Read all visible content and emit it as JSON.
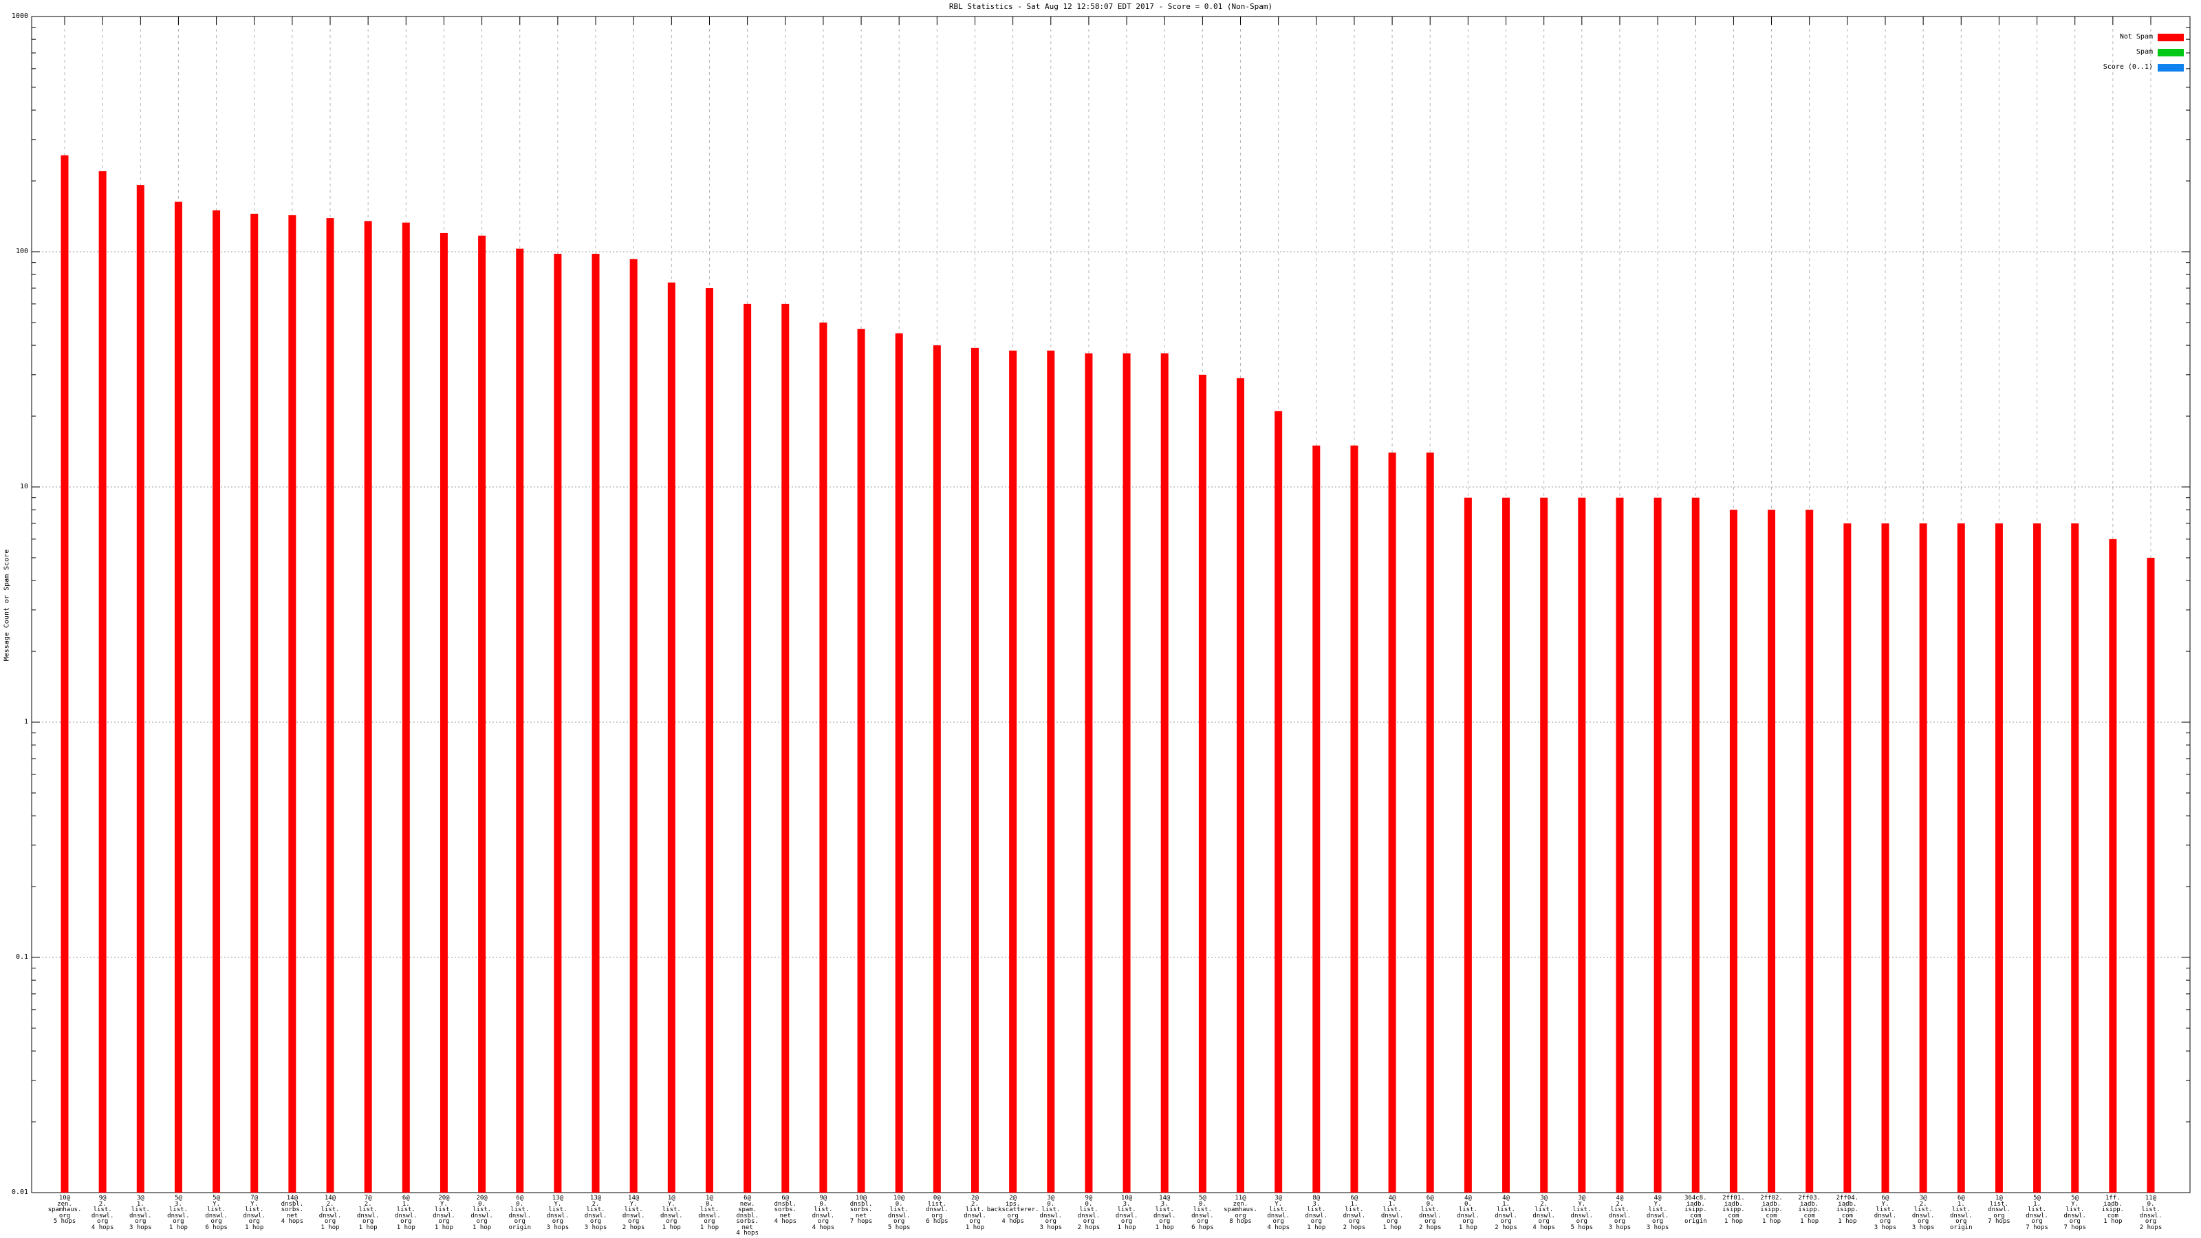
{
  "chart_data": {
    "type": "bar",
    "title": "RBL Statistics - Sat Aug 12 12:58:07 EDT 2017 - Score = 0.01 (Non-Spam)",
    "ylabel": "Message Count or Spam Score",
    "xlabel": "",
    "yscale": "log",
    "ylim": [
      0.01,
      1000
    ],
    "ytick_values": [
      1000,
      100,
      10,
      1,
      0.1,
      0.01
    ],
    "ytick_labels": [
      "1000",
      "100",
      "10",
      "1",
      "0.1",
      "0.01"
    ],
    "grid": true,
    "legend_position": "top-right-inside",
    "legend": [
      {
        "label": "Not Spam",
        "color": "#ff0000"
      },
      {
        "label": "Spam",
        "color": "#00c814"
      },
      {
        "label": "Score (0..1)",
        "color": "#1082f0"
      }
    ],
    "series_shown_in_bars": "Not Spam",
    "bar_color": "#ff0000",
    "bars": [
      {
        "label_lines": [
          "10@",
          "zen.",
          "spamhaus.",
          "org",
          "5 hops"
        ],
        "value": 257
      },
      {
        "label_lines": [
          "9@",
          "2.",
          "list.",
          "dnswl.",
          "org",
          "4 hops"
        ],
        "value": 220
      },
      {
        "label_lines": [
          "3@",
          "1.",
          "list.",
          "dnswl.",
          "org",
          "3 hops"
        ],
        "value": 192
      },
      {
        "label_lines": [
          "5@",
          "3.",
          "list.",
          "dnswl.",
          "org",
          "1 hop"
        ],
        "value": 163
      },
      {
        "label_lines": [
          "5@",
          "Y.",
          "list.",
          "dnswl.",
          "org",
          "6 hops"
        ],
        "value": 150
      },
      {
        "label_lines": [
          "7@",
          "Y.",
          "list.",
          "dnswl.",
          "org",
          "1 hop"
        ],
        "value": 145
      },
      {
        "label_lines": [
          "14@",
          "dnsbl.",
          "sorbs.",
          "net",
          "4 hops"
        ],
        "value": 143
      },
      {
        "label_lines": [
          "14@",
          "2.",
          "list.",
          "dnswl.",
          "org",
          "1 hop"
        ],
        "value": 139
      },
      {
        "label_lines": [
          "7@",
          "2.",
          "list.",
          "dnswl.",
          "org",
          "1 hop"
        ],
        "value": 135
      },
      {
        "label_lines": [
          "6@",
          "1.",
          "list.",
          "dnswl.",
          "org",
          "1 hop"
        ],
        "value": 133
      },
      {
        "label_lines": [
          "20@",
          "Y.",
          "list.",
          "dnswl.",
          "org",
          "1 hop"
        ],
        "value": 120
      },
      {
        "label_lines": [
          "20@",
          "0.",
          "list.",
          "dnswl.",
          "org",
          "1 hop"
        ],
        "value": 117
      },
      {
        "label_lines": [
          "6@",
          "0.",
          "list.",
          "dnswl.",
          "org",
          "origin"
        ],
        "value": 103
      },
      {
        "label_lines": [
          "13@",
          "Y.",
          "list.",
          "dnswl.",
          "org",
          "3 hops"
        ],
        "value": 98
      },
      {
        "label_lines": [
          "13@",
          "2.",
          "list.",
          "dnswl.",
          "org",
          "3 hops"
        ],
        "value": 98
      },
      {
        "label_lines": [
          "14@",
          "Y.",
          "list.",
          "dnswl.",
          "org",
          "2 hops"
        ],
        "value": 93
      },
      {
        "label_lines": [
          "1@",
          "Y.",
          "list.",
          "dnswl.",
          "org",
          "1 hop"
        ],
        "value": 74
      },
      {
        "label_lines": [
          "1@",
          "0.",
          "list.",
          "dnswl.",
          "org",
          "1 hop"
        ],
        "value": 70
      },
      {
        "label_lines": [
          "6@",
          "new.",
          "spam.",
          "dnsbl.",
          "sorbs.",
          "net",
          "4 hops"
        ],
        "value": 60
      },
      {
        "label_lines": [
          "6@",
          "dnsbl.",
          "sorbs.",
          "net",
          "4 hops"
        ],
        "value": 60
      },
      {
        "label_lines": [
          "9@",
          "0.",
          "list.",
          "dnswl.",
          "org",
          "4 hops"
        ],
        "value": 50
      },
      {
        "label_lines": [
          "10@",
          "dnsbl.",
          "sorbs.",
          "net",
          "7 hops"
        ],
        "value": 47
      },
      {
        "label_lines": [
          "10@",
          "0.",
          "list.",
          "dnswl.",
          "org",
          "5 hops"
        ],
        "value": 45
      },
      {
        "label_lines": [
          "0@",
          "list.",
          "dnswl.",
          "org",
          "6 hops"
        ],
        "value": 40
      },
      {
        "label_lines": [
          "2@",
          "2.",
          "list.",
          "dnswl.",
          "org",
          "1 hop"
        ],
        "value": 39
      },
      {
        "label_lines": [
          "2@",
          "ips.",
          "backscatterer.",
          "org",
          "4 hops"
        ],
        "value": 38
      },
      {
        "label_lines": [
          "3@",
          "0.",
          "list.",
          "dnswl.",
          "org",
          "3 hops"
        ],
        "value": 38
      },
      {
        "label_lines": [
          "9@",
          "0.",
          "list.",
          "dnswl.",
          "org",
          "2 hops"
        ],
        "value": 37
      },
      {
        "label_lines": [
          "10@",
          "3.",
          "list.",
          "dnswl.",
          "org",
          "1 hop"
        ],
        "value": 37
      },
      {
        "label_lines": [
          "14@",
          "3.",
          "list.",
          "dnswl.",
          "org",
          "1 hop"
        ],
        "value": 37
      },
      {
        "label_lines": [
          "5@",
          "0.",
          "list.",
          "dnswl.",
          "org",
          "6 hops"
        ],
        "value": 30
      },
      {
        "label_lines": [
          "11@",
          "zen.",
          "spamhaus.",
          "org",
          "8 hops"
        ],
        "value": 29
      },
      {
        "label_lines": [
          "3@",
          "Y.",
          "list.",
          "dnswl.",
          "org",
          "4 hops"
        ],
        "value": 21
      },
      {
        "label_lines": [
          "8@",
          "3.",
          "list.",
          "dnswl.",
          "org",
          "1 hop"
        ],
        "value": 15
      },
      {
        "label_lines": [
          "6@",
          "1.",
          "list.",
          "dnswl.",
          "org",
          "2 hops"
        ],
        "value": 15
      },
      {
        "label_lines": [
          "4@",
          "1.",
          "list.",
          "dnswl.",
          "org",
          "1 hop"
        ],
        "value": 14
      },
      {
        "label_lines": [
          "6@",
          "0.",
          "list.",
          "dnswl.",
          "org",
          "2 hops"
        ],
        "value": 14
      },
      {
        "label_lines": [
          "4@",
          "0.",
          "list.",
          "dnswl.",
          "org",
          "1 hop"
        ],
        "value": 9
      },
      {
        "label_lines": [
          "4@",
          "1.",
          "list.",
          "dnswl.",
          "org",
          "2 hops"
        ],
        "value": 9
      },
      {
        "label_lines": [
          "3@",
          "2.",
          "list.",
          "dnswl.",
          "org",
          "4 hops"
        ],
        "value": 9
      },
      {
        "label_lines": [
          "3@",
          "Y.",
          "list.",
          "dnswl.",
          "org",
          "5 hops"
        ],
        "value": 9
      },
      {
        "label_lines": [
          "4@",
          "2.",
          "list.",
          "dnswl.",
          "org",
          "3 hops"
        ],
        "value": 9
      },
      {
        "label_lines": [
          "4@",
          "Y.",
          "list.",
          "dnswl.",
          "org",
          "3 hops"
        ],
        "value": 9
      },
      {
        "label_lines": [
          "364c8.",
          "iadb.",
          "isipp.",
          "com",
          "origin"
        ],
        "value": 9
      },
      {
        "label_lines": [
          "2ff01.",
          "iadb.",
          "isipp.",
          "com",
          "1 hop"
        ],
        "value": 8
      },
      {
        "label_lines": [
          "2ff02.",
          "iadb.",
          "isipp.",
          "com",
          "1 hop"
        ],
        "value": 8
      },
      {
        "label_lines": [
          "2ff03.",
          "iadb.",
          "isipp.",
          "com",
          "1 hop"
        ],
        "value": 8
      },
      {
        "label_lines": [
          "2ff04.",
          "iadb.",
          "isipp.",
          "com",
          "1 hop"
        ],
        "value": 7
      },
      {
        "label_lines": [
          "6@",
          "Y.",
          "list.",
          "dnswl.",
          "org",
          "3 hops"
        ],
        "value": 7
      },
      {
        "label_lines": [
          "3@",
          "2.",
          "list.",
          "dnswl.",
          "org",
          "3 hops"
        ],
        "value": 7
      },
      {
        "label_lines": [
          "6@",
          "1.",
          "list.",
          "dnswl.",
          "org",
          "origin"
        ],
        "value": 7
      },
      {
        "label_lines": [
          "1@",
          "list.",
          "dnswl.",
          "org",
          "7 hops"
        ],
        "value": 7
      },
      {
        "label_lines": [
          "5@",
          "1.",
          "list.",
          "dnswl.",
          "org",
          "7 hops"
        ],
        "value": 7
      },
      {
        "label_lines": [
          "5@",
          "Y.",
          "list.",
          "dnswl.",
          "org",
          "7 hops"
        ],
        "value": 7
      },
      {
        "label_lines": [
          "1ff.",
          "iadb.",
          "isipp.",
          "com",
          "1 hop"
        ],
        "value": 6
      },
      {
        "label_lines": [
          "11@",
          "0.",
          "list.",
          "dnswl.",
          "org",
          "2 hops"
        ],
        "value": 5
      }
    ]
  }
}
